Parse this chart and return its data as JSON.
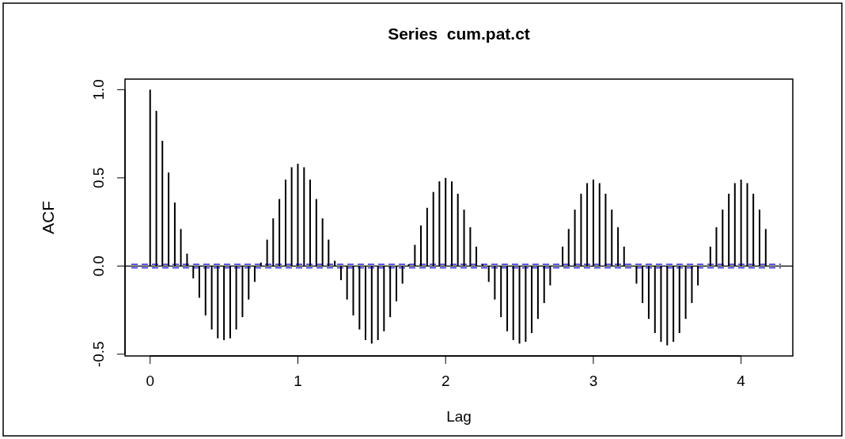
{
  "chart_data": {
    "type": "bar",
    "title": "Series  cum.pat.ct",
    "xlabel": "Lag",
    "ylabel": "ACF",
    "color": "#000000",
    "x": [
      0,
      0.042,
      0.083,
      0.125,
      0.167,
      0.208,
      0.25,
      0.292,
      0.333,
      0.375,
      0.417,
      0.458,
      0.5,
      0.542,
      0.583,
      0.625,
      0.667,
      0.708,
      0.75,
      0.792,
      0.833,
      0.875,
      0.917,
      0.958,
      1,
      1.042,
      1.083,
      1.125,
      1.167,
      1.208,
      1.25,
      1.292,
      1.333,
      1.375,
      1.417,
      1.458,
      1.5,
      1.542,
      1.583,
      1.625,
      1.667,
      1.708,
      1.75,
      1.792,
      1.833,
      1.875,
      1.917,
      1.958,
      2,
      2.042,
      2.083,
      2.125,
      2.167,
      2.208,
      2.25,
      2.292,
      2.333,
      2.375,
      2.417,
      2.458,
      2.5,
      2.542,
      2.583,
      2.625,
      2.667,
      2.708,
      2.75,
      2.792,
      2.833,
      2.875,
      2.917,
      2.958,
      3,
      3.042,
      3.083,
      3.125,
      3.167,
      3.208,
      3.25,
      3.292,
      3.333,
      3.375,
      3.417,
      3.458,
      3.5,
      3.542,
      3.583,
      3.625,
      3.667,
      3.708,
      3.75,
      3.792,
      3.833,
      3.875,
      3.917,
      3.958,
      4,
      4.042,
      4.083,
      4.125,
      4.167
    ],
    "values": [
      1.0,
      0.88,
      0.71,
      0.53,
      0.36,
      0.21,
      0.07,
      -0.07,
      -0.18,
      -0.28,
      -0.36,
      -0.41,
      -0.42,
      -0.41,
      -0.36,
      -0.29,
      -0.19,
      -0.09,
      0.02,
      0.15,
      0.27,
      0.38,
      0.49,
      0.56,
      0.58,
      0.56,
      0.49,
      0.38,
      0.27,
      0.15,
      0.03,
      -0.08,
      -0.19,
      -0.28,
      -0.36,
      -0.42,
      -0.44,
      -0.42,
      -0.37,
      -0.29,
      -0.2,
      -0.1,
      0.01,
      0.12,
      0.23,
      0.33,
      0.42,
      0.48,
      0.5,
      0.48,
      0.41,
      0.32,
      0.22,
      0.11,
      0.01,
      -0.09,
      -0.19,
      -0.29,
      -0.37,
      -0.42,
      -0.44,
      -0.43,
      -0.38,
      -0.3,
      -0.21,
      -0.11,
      0,
      0.11,
      0.21,
      0.32,
      0.41,
      0.47,
      0.49,
      0.47,
      0.41,
      0.32,
      0.22,
      0.11,
      0,
      -0.1,
      -0.21,
      -0.3,
      -0.38,
      -0.43,
      -0.45,
      -0.43,
      -0.38,
      -0.3,
      -0.21,
      -0.11,
      0,
      0.11,
      0.22,
      0.32,
      0.41,
      0.47,
      0.49,
      0.47,
      0.41,
      0.32,
      0.21
    ],
    "xlim": [
      -0.17,
      4.35
    ],
    "xticks": [
      0,
      1,
      2,
      3,
      4
    ],
    "ylim": [
      -0.51,
      1.06
    ],
    "yticks": [
      {
        "value": -0.5,
        "label": "-0.5"
      },
      {
        "value": 0,
        "label": "0.0"
      },
      {
        "value": 0.5,
        "label": "0.5"
      },
      {
        "value": 1,
        "label": "1.0"
      }
    ],
    "ref_lines": [
      {
        "axis": "y",
        "value": 0,
        "label": null,
        "color": "#000000",
        "line_style": "solid"
      },
      {
        "axis": "y",
        "value": 0.01,
        "label": null,
        "color": "#0000ff",
        "line_style": "dashed"
      },
      {
        "axis": "y",
        "value": -0.01,
        "label": null,
        "color": "#0000ff",
        "line_style": "dashed"
      }
    ]
  }
}
